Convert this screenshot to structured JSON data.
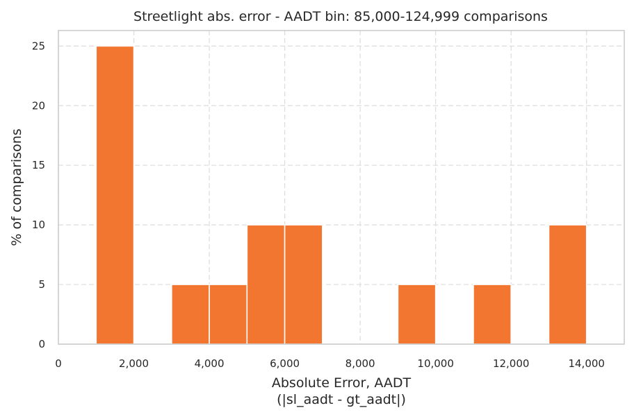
{
  "chart_data": {
    "type": "bar",
    "title": "Streetlight abs. error - AADT bin: 85,000-124,999 comparisons",
    "xlabel_line1": "Absolute Error, AADT",
    "xlabel_line2": "(|sl_aadt - gt_aadt|)",
    "ylabel": "% of comparisons",
    "xlim": [
      0,
      15000
    ],
    "ylim": [
      0,
      26.3
    ],
    "grid": true,
    "bar_color": "#f37630",
    "xticks": [
      0,
      2000,
      4000,
      6000,
      8000,
      10000,
      12000,
      14000
    ],
    "xtick_labels": [
      "0",
      "2,000",
      "4,000",
      "6,000",
      "8,000",
      "10,000",
      "12,000",
      "14,000"
    ],
    "yticks": [
      0,
      5,
      10,
      15,
      20,
      25
    ],
    "ytick_labels": [
      "0",
      "5",
      "10",
      "15",
      "20",
      "25"
    ],
    "bins": [
      {
        "x0": 1000,
        "x1": 2000,
        "value": 25
      },
      {
        "x0": 3000,
        "x1": 4000,
        "value": 5
      },
      {
        "x0": 4000,
        "x1": 5000,
        "value": 5
      },
      {
        "x0": 5000,
        "x1": 6000,
        "value": 10
      },
      {
        "x0": 6000,
        "x1": 7000,
        "value": 10
      },
      {
        "x0": 9000,
        "x1": 10000,
        "value": 5
      },
      {
        "x0": 11000,
        "x1": 12000,
        "value": 5
      },
      {
        "x0": 13000,
        "x1": 14000,
        "value": 10
      }
    ]
  }
}
